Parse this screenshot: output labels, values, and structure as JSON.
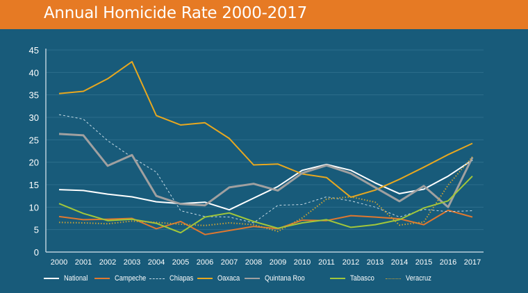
{
  "chart_data": {
    "type": "line",
    "title": "Annual Homicide Rate 2000-2017",
    "xlabel": "",
    "ylabel": "",
    "ylim": [
      0,
      45
    ],
    "yticks": [
      0,
      5,
      10,
      15,
      20,
      25,
      30,
      35,
      40,
      45
    ],
    "grid": true,
    "legend_position": "bottom",
    "x": [
      "2000",
      "2001",
      "2002",
      "2003",
      "2004",
      "2005",
      "2006",
      "2007",
      "2008",
      "2009",
      "2010",
      "2011",
      "2012",
      "2013",
      "2014",
      "2015",
      "2016",
      "2017"
    ],
    "series": [
      {
        "name": "National",
        "color": "#ffffff",
        "style": "solid",
        "width": 2,
        "values": [
          13.9,
          13.7,
          12.9,
          12.3,
          11.2,
          10.8,
          11.1,
          9.4,
          12.0,
          14.6,
          18.2,
          19.5,
          18.2,
          15.4,
          13.0,
          14.0,
          16.9,
          20.5
        ]
      },
      {
        "name": "Campeche",
        "color": "#e0782f",
        "style": "solid",
        "width": 2,
        "values": [
          7.9,
          7.2,
          7.3,
          7.5,
          5.2,
          6.8,
          3.9,
          4.8,
          5.7,
          5.2,
          7.1,
          7.0,
          8.1,
          7.8,
          7.4,
          6.1,
          9.3,
          7.8
        ]
      },
      {
        "name": "Chiapas",
        "color": "#c9dde8",
        "style": "dashed",
        "width": 1,
        "values": [
          30.6,
          29.6,
          24.8,
          21.1,
          17.8,
          9.2,
          7.9,
          7.8,
          6.5,
          10.4,
          10.6,
          12.3,
          11.4,
          10.0,
          7.8,
          9.5,
          9.0,
          9.2
        ]
      },
      {
        "name": "Oaxaca",
        "color": "#e8a81f",
        "style": "solid",
        "width": 2,
        "values": [
          35.3,
          35.8,
          38.6,
          42.4,
          30.4,
          28.3,
          28.8,
          25.3,
          19.4,
          19.6,
          17.4,
          16.6,
          12.2,
          13.8,
          16.2,
          18.9,
          21.7,
          24.2
        ]
      },
      {
        "name": "Quintana Roo",
        "color": "#a0a0a0",
        "style": "solid",
        "width": 3,
        "values": [
          26.3,
          26.0,
          19.2,
          21.6,
          12.5,
          10.7,
          10.4,
          14.4,
          15.2,
          13.7,
          17.6,
          19.3,
          17.5,
          14.4,
          11.3,
          14.7,
          10.0,
          21.1
        ]
      },
      {
        "name": "Tabasco",
        "color": "#a2c73a",
        "style": "solid",
        "width": 2,
        "values": [
          10.8,
          8.6,
          7.0,
          7.3,
          6.4,
          4.3,
          7.8,
          8.7,
          6.8,
          5.3,
          6.5,
          7.2,
          5.5,
          6.1,
          7.2,
          9.8,
          11.4,
          16.9
        ]
      },
      {
        "name": "Veracruz",
        "color": "#c8a236",
        "style": "dotted",
        "width": 2,
        "values": [
          6.6,
          6.5,
          6.3,
          6.9,
          6.6,
          6.2,
          5.9,
          6.5,
          6.1,
          4.6,
          7.6,
          11.8,
          12.3,
          11.1,
          6.0,
          6.7,
          14.9,
          21.2
        ]
      }
    ]
  }
}
